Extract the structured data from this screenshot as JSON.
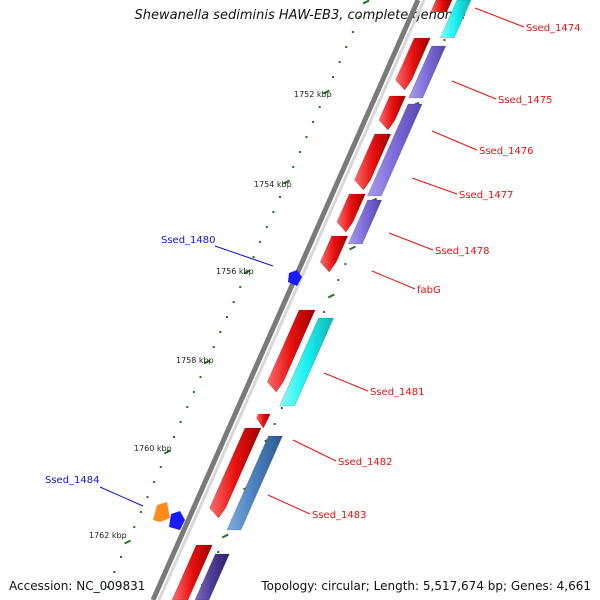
{
  "title": "Shewanella sediminis HAW-EB3, complete genome",
  "footer": {
    "accession": "Accession: NC_009831",
    "topology": "Topology: circular; Length: 5,517,674 bp; Genes: 4,661"
  },
  "colors": {
    "backbone": "#7a7a7a",
    "forward_gene": "#e81010",
    "label_red": "#e81010",
    "label_blue": "#1010e0",
    "tick": "#1a7a1a",
    "cyan": "#18f0f0",
    "purple": "#7e6cd8",
    "steel": "#4a7fbf",
    "orange": "#ff8c1a",
    "blue": "#1a1aff",
    "dark_purple": "#4c3c96"
  },
  "scale": [
    {
      "label": "1752 kbp"
    },
    {
      "label": "1754 kbp"
    },
    {
      "label": "1756 kbp"
    },
    {
      "label": "1758 kbp"
    },
    {
      "label": "1760 kbp"
    },
    {
      "label": "1762 kbp"
    }
  ],
  "right_labels": [
    {
      "text": "Ssed_1474"
    },
    {
      "text": "Ssed_1475"
    },
    {
      "text": "Ssed_1476"
    },
    {
      "text": "Ssed_1477"
    },
    {
      "text": "Ssed_1478"
    },
    {
      "text": "fabG"
    },
    {
      "text": "Ssed_1481"
    },
    {
      "text": "Ssed_1482"
    },
    {
      "text": "Ssed_1483"
    }
  ],
  "left_labels": [
    {
      "text": "Ssed_1480"
    },
    {
      "text": "Ssed_1484"
    }
  ]
}
